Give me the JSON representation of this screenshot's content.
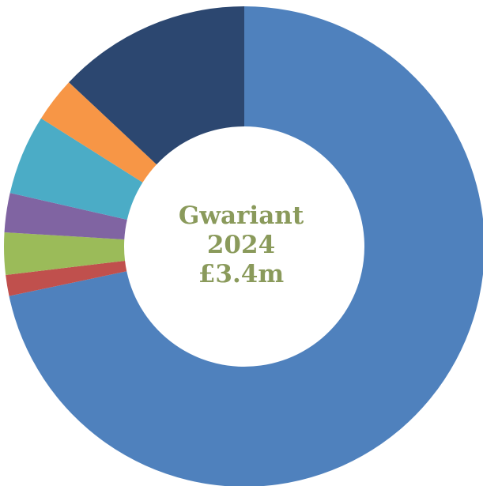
{
  "chart_data": {
    "type": "pie",
    "variant": "donut",
    "title": "",
    "center_label": {
      "line1": "Gwariant",
      "line2": "2024",
      "line3": "£3.4m"
    },
    "slices": [
      {
        "value": 76.0,
        "color": "#4f81bd"
      },
      {
        "value": 1.5,
        "color": "#c0504d"
      },
      {
        "value": 3.0,
        "color": "#9bbb59"
      },
      {
        "value": 2.8,
        "color": "#8064a2"
      },
      {
        "value": 5.7,
        "color": "#4bacc6"
      },
      {
        "value": 3.2,
        "color": "#f79646"
      },
      {
        "value": 13.8,
        "color": "#2c4770"
      }
    ],
    "legend": "none",
    "start": "top",
    "direction": "clockwise"
  }
}
